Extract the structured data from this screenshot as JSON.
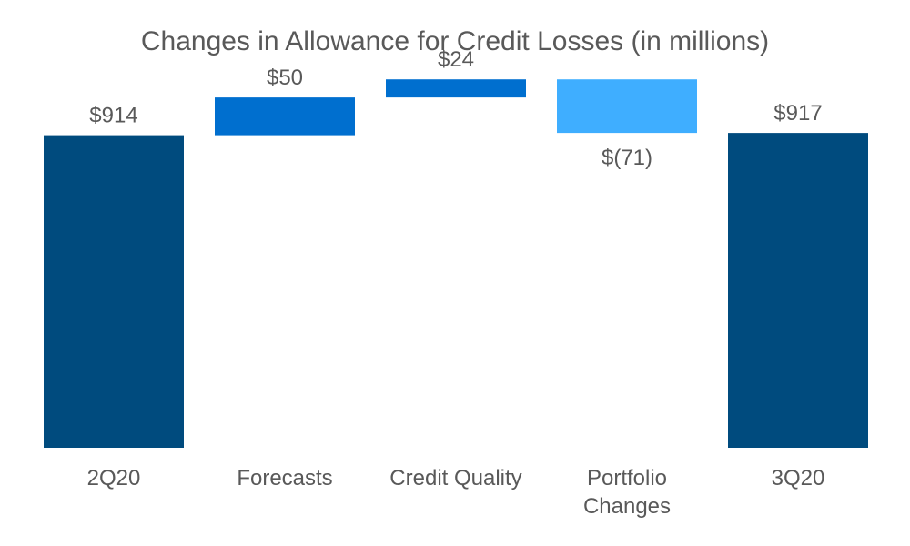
{
  "chart_data": {
    "type": "waterfall",
    "title": "Changes in Allowance for Credit Losses (in millions)",
    "xlabel": "",
    "ylabel": "",
    "ylim": [
      500,
      975
    ],
    "grid": false,
    "legend": "none",
    "categories": [
      {
        "lines": [
          "2Q20"
        ]
      },
      {
        "lines": [
          "Forecasts"
        ]
      },
      {
        "lines": [
          "Credit Quality"
        ]
      },
      {
        "lines": [
          "Portfolio",
          "Changes"
        ]
      },
      {
        "lines": [
          "3Q20"
        ]
      }
    ],
    "bars": [
      {
        "kind": "total",
        "value": 914,
        "label": "$914",
        "color": "#004B7E"
      },
      {
        "kind": "delta",
        "value": 50,
        "label": "$50",
        "color": "#006FCF"
      },
      {
        "kind": "delta",
        "value": 24,
        "label": "$24",
        "color": "#006FCF"
      },
      {
        "kind": "delta",
        "value": -71,
        "label": "$(71)",
        "color": "#3FAEFF"
      },
      {
        "kind": "total",
        "value": 917,
        "label": "$917",
        "color": "#004B7E"
      }
    ]
  }
}
